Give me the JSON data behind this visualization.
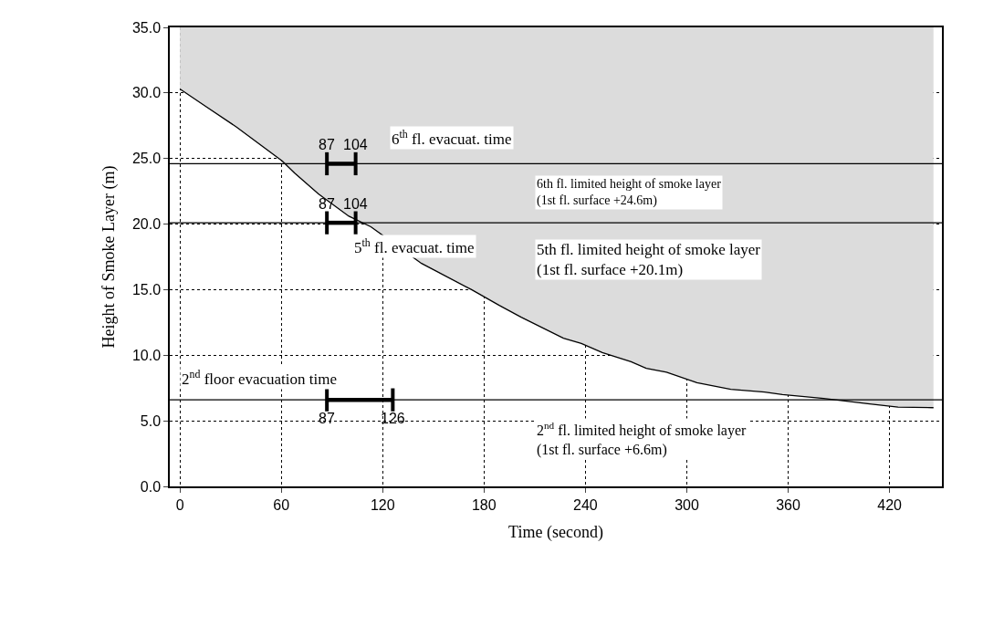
{
  "chart_data": {
    "type": "line",
    "xlabel": "Time (second)",
    "ylabel": "Height of Smoke Layer (m)",
    "xlim": [
      -6,
      451
    ],
    "xticks": [
      0,
      60,
      120,
      180,
      240,
      300,
      360,
      420
    ],
    "ylim": [
      0,
      35
    ],
    "yticks": [
      {
        "value": 0,
        "label": "0.0"
      },
      {
        "value": 5,
        "label": "5.0"
      },
      {
        "value": 10,
        "label": "10.0"
      },
      {
        "value": 15,
        "label": "15.0"
      },
      {
        "value": 20,
        "label": "20.0"
      },
      {
        "value": 25,
        "label": "25.0"
      },
      {
        "value": 30,
        "label": "30.0"
      },
      {
        "value": 35,
        "label": "35.0"
      }
    ],
    "grid": true,
    "marker": "none",
    "line_style": "solid",
    "series": [
      {
        "color": "#000000",
        "x": [
          0,
          15,
          33.5,
          60.6,
          67.8,
          82,
          100,
          113,
          143,
          172.6,
          189,
          202,
          227,
          237.6,
          250,
          267,
          276,
          288,
          306,
          326,
          346,
          356.6,
          381,
          407,
          425,
          446
        ],
        "values": [
          30.3,
          29.0,
          27.4,
          24.8,
          23.9,
          22.3,
          20.6,
          19.8,
          17.0,
          15.0,
          13.8,
          12.9,
          11.3,
          10.9,
          10.2,
          9.5,
          9.0,
          8.7,
          7.9,
          7.4,
          7.2,
          7.0,
          6.7,
          6.3,
          6.05,
          6.0
        ],
        "lower": [
          30.3,
          29.0,
          27.4,
          24.8,
          23.9,
          22.3,
          20.6,
          19.8,
          17.0,
          15.0,
          13.8,
          12.9,
          11.3,
          10.9,
          10.2,
          9.5,
          9.0,
          8.7,
          7.9,
          7.4,
          7.2,
          7.0,
          6.7,
          6.3,
          6.05,
          6.0
        ],
        "upper": [
          35,
          35,
          35,
          35,
          35,
          35,
          35,
          35,
          35,
          35,
          35,
          35,
          35,
          35,
          35,
          35,
          35,
          35,
          35,
          35,
          35,
          35,
          35,
          35,
          35,
          35
        ]
      },
      {
        "type": "line",
        "color": "#000000",
        "x": [
          87,
          104
        ],
        "values": [
          24.6,
          24.6
        ]
      },
      {
        "type": "line",
        "color": "#000000",
        "x": [
          87,
          104
        ],
        "values": [
          20.1,
          20.1
        ]
      },
      {
        "type": "line",
        "color": "#000000",
        "x": [
          87,
          126
        ],
        "values": [
          6.6,
          6.6
        ]
      }
    ],
    "ref_lines": [
      {
        "axis": "y",
        "value": 24.6,
        "color": "#000000"
      },
      {
        "axis": "y",
        "value": 20.1,
        "color": "#000000"
      },
      {
        "axis": "y",
        "value": 6.6,
        "color": "#000000"
      }
    ],
    "annotations": [
      "6$^{th}$ fl. evacuat. time",
      "6th fl. limited height of smoke layer\n(1st fl. surface +24.6m)",
      "5$^{th}$ fl. evacuat. time",
      "5th fl. limited height of smoke layer\n(1st fl. surface +20.1m)",
      "2$^{nd}$ floor evacuation time",
      "2$^{nd}$ fl. limited height of smoke layer\n(1st fl. surface +6.6m)",
      {
        "text": "87",
        "x": 87,
        "y": 24.6
      },
      {
        "text": "104",
        "x": 104,
        "y": 24.6
      },
      {
        "text": "87",
        "x": 87,
        "y": 20.1
      },
      {
        "text": "104",
        "x": 104,
        "y": 20.1
      },
      {
        "text": "87",
        "x": 87,
        "y": 6.6
      },
      {
        "text": "126",
        "x": 126,
        "y": 6.6
      }
    ]
  }
}
